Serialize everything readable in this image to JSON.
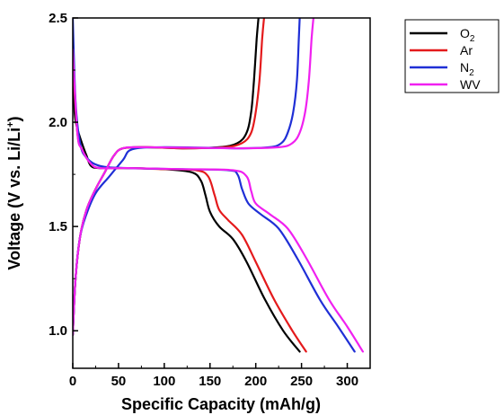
{
  "chart_data": {
    "type": "line",
    "xlabel": "Specific Capacity (mAh/g)",
    "ylabel": {
      "main": "Voltage (V vs. Li/Li",
      "sup": "+",
      "end": ")"
    },
    "xlim": [
      0,
      325
    ],
    "ylim": [
      0.82,
      2.5
    ],
    "xticks": [
      0,
      50,
      100,
      150,
      200,
      250,
      300
    ],
    "yticks": [
      1.0,
      1.5,
      2.0,
      2.5
    ],
    "ytick_labels": [
      "1.0",
      "1.5",
      "2.0",
      "2.5"
    ],
    "grid": false,
    "legend_position": "top-right",
    "series": [
      {
        "name": "O2",
        "label_main": "O",
        "label_sub": "2",
        "color": "#000000",
        "discharge": [
          [
            0,
            2.3
          ],
          [
            2,
            2.05
          ],
          [
            5,
            1.97
          ],
          [
            10,
            1.9
          ],
          [
            15,
            1.84
          ],
          [
            20,
            1.79
          ],
          [
            30,
            1.78
          ],
          [
            60,
            1.78
          ],
          [
            100,
            1.775
          ],
          [
            130,
            1.76
          ],
          [
            140,
            1.72
          ],
          [
            145,
            1.65
          ],
          [
            150,
            1.57
          ],
          [
            160,
            1.5
          ],
          [
            175,
            1.44
          ],
          [
            190,
            1.33
          ],
          [
            210,
            1.15
          ],
          [
            230,
            1.0
          ],
          [
            248,
            0.9
          ]
        ],
        "charge": [
          [
            0,
            0.98
          ],
          [
            3,
            1.25
          ],
          [
            8,
            1.45
          ],
          [
            15,
            1.58
          ],
          [
            25,
            1.68
          ],
          [
            35,
            1.76
          ],
          [
            45,
            1.84
          ],
          [
            55,
            1.875
          ],
          [
            80,
            1.88
          ],
          [
            120,
            1.875
          ],
          [
            160,
            1.88
          ],
          [
            180,
            1.9
          ],
          [
            190,
            1.95
          ],
          [
            195,
            2.05
          ],
          [
            198,
            2.2
          ],
          [
            201,
            2.4
          ],
          [
            203,
            2.5
          ]
        ]
      },
      {
        "name": "Ar",
        "label_main": "Ar",
        "label_sub": "",
        "color": "#e41a1c",
        "discharge": [
          [
            0,
            2.3
          ],
          [
            5,
            1.95
          ],
          [
            10,
            1.87
          ],
          [
            20,
            1.8
          ],
          [
            30,
            1.78
          ],
          [
            60,
            1.78
          ],
          [
            100,
            1.775
          ],
          [
            135,
            1.77
          ],
          [
            148,
            1.74
          ],
          [
            155,
            1.65
          ],
          [
            160,
            1.58
          ],
          [
            170,
            1.53
          ],
          [
            185,
            1.46
          ],
          [
            200,
            1.33
          ],
          [
            220,
            1.15
          ],
          [
            240,
            1.0
          ],
          [
            255,
            0.9
          ]
        ],
        "charge": [
          [
            0,
            0.98
          ],
          [
            3,
            1.25
          ],
          [
            8,
            1.45
          ],
          [
            15,
            1.58
          ],
          [
            25,
            1.68
          ],
          [
            35,
            1.76
          ],
          [
            45,
            1.84
          ],
          [
            55,
            1.875
          ],
          [
            80,
            1.88
          ],
          [
            120,
            1.875
          ],
          [
            165,
            1.88
          ],
          [
            185,
            1.9
          ],
          [
            195,
            1.95
          ],
          [
            200,
            2.05
          ],
          [
            204,
            2.2
          ],
          [
            207,
            2.4
          ],
          [
            209,
            2.5
          ]
        ]
      },
      {
        "name": "N2",
        "label_main": "N",
        "label_sub": "2",
        "color": "#1f2fd6",
        "discharge": [
          [
            0,
            2.5
          ],
          [
            3,
            2.1
          ],
          [
            8,
            1.9
          ],
          [
            15,
            1.83
          ],
          [
            30,
            1.79
          ],
          [
            60,
            1.78
          ],
          [
            120,
            1.775
          ],
          [
            170,
            1.77
          ],
          [
            180,
            1.75
          ],
          [
            185,
            1.68
          ],
          [
            192,
            1.61
          ],
          [
            205,
            1.56
          ],
          [
            225,
            1.49
          ],
          [
            245,
            1.35
          ],
          [
            270,
            1.15
          ],
          [
            290,
            1.02
          ],
          [
            308,
            0.9
          ]
        ],
        "charge": [
          [
            0,
            0.98
          ],
          [
            3,
            1.25
          ],
          [
            8,
            1.45
          ],
          [
            15,
            1.56
          ],
          [
            25,
            1.66
          ],
          [
            40,
            1.74
          ],
          [
            55,
            1.82
          ],
          [
            65,
            1.87
          ],
          [
            100,
            1.88
          ],
          [
            180,
            1.875
          ],
          [
            215,
            1.88
          ],
          [
            228,
            1.9
          ],
          [
            235,
            1.95
          ],
          [
            241,
            2.05
          ],
          [
            245,
            2.2
          ],
          [
            247,
            2.4
          ],
          [
            248,
            2.5
          ]
        ]
      },
      {
        "name": "WV",
        "label_main": "WV",
        "label_sub": "",
        "color": "#f020f0",
        "discharge": [
          [
            0,
            2.35
          ],
          [
            5,
            1.95
          ],
          [
            10,
            1.87
          ],
          [
            20,
            1.8
          ],
          [
            30,
            1.78
          ],
          [
            60,
            1.78
          ],
          [
            120,
            1.775
          ],
          [
            175,
            1.77
          ],
          [
            190,
            1.74
          ],
          [
            195,
            1.67
          ],
          [
            200,
            1.61
          ],
          [
            215,
            1.56
          ],
          [
            235,
            1.49
          ],
          [
            255,
            1.35
          ],
          [
            280,
            1.15
          ],
          [
            300,
            1.02
          ],
          [
            317,
            0.9
          ]
        ],
        "charge": [
          [
            0,
            0.98
          ],
          [
            3,
            1.25
          ],
          [
            8,
            1.45
          ],
          [
            15,
            1.58
          ],
          [
            25,
            1.68
          ],
          [
            35,
            1.76
          ],
          [
            45,
            1.84
          ],
          [
            55,
            1.875
          ],
          [
            80,
            1.88
          ],
          [
            180,
            1.875
          ],
          [
            225,
            1.88
          ],
          [
            240,
            1.9
          ],
          [
            248,
            1.95
          ],
          [
            254,
            2.05
          ],
          [
            258,
            2.2
          ],
          [
            261,
            2.4
          ],
          [
            263,
            2.5
          ]
        ]
      }
    ]
  }
}
